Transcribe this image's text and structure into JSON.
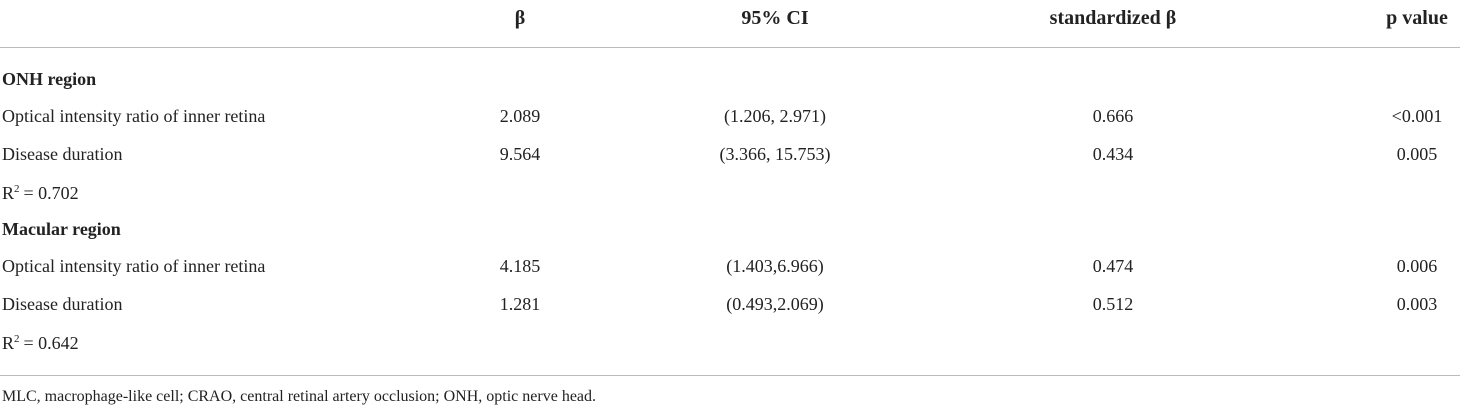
{
  "table": {
    "columns": [
      "β",
      "95% CI",
      "standardized β",
      "p value"
    ],
    "sections": [
      {
        "title": "ONH region",
        "rows": [
          [
            "Optical intensity ratio of inner retina",
            "2.089",
            "(1.206, 2.971)",
            "0.666",
            "<0.001"
          ],
          [
            "Disease duration",
            "9.564",
            "(3.366, 15.753)",
            "0.434",
            "0.005"
          ]
        ],
        "r2": {
          "symbol": "R",
          "sup": "2",
          "value": "= 0.702"
        }
      },
      {
        "title": "Macular region",
        "rows": [
          [
            "Optical intensity ratio of inner retina",
            "4.185",
            "(1.403,6.966)",
            "0.474",
            "0.006"
          ],
          [
            "Disease duration",
            "1.281",
            "(0.493,2.069)",
            "0.512",
            "0.003"
          ]
        ],
        "r2": {
          "symbol": "R",
          "sup": "2",
          "value": "= 0.642"
        }
      }
    ],
    "footnote": "MLC, macrophage-like cell; CRAO, central retinal artery occlusion; ONH, optic nerve head."
  }
}
